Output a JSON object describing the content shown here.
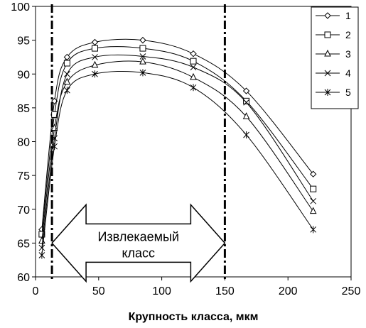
{
  "chart_data": {
    "type": "line",
    "xlabel": "Крупность класса, мкм",
    "ylabel": "",
    "xlim": [
      0,
      250
    ],
    "ylim": [
      60,
      100
    ],
    "xticks": [
      "0",
      "50",
      "100",
      "150",
      "200",
      "250"
    ],
    "yticks": [
      "60",
      "65",
      "70",
      "75",
      "80",
      "85",
      "90",
      "95",
      "100"
    ],
    "grid": false,
    "legend_position": "top-right",
    "x": [
      5,
      15,
      25,
      47,
      85,
      125,
      167,
      220
    ],
    "series": [
      {
        "name": "1",
        "marker": "diamond",
        "values": [
          67.0,
          86.0,
          92.5,
          94.7,
          95.0,
          93.0,
          87.5,
          75.2
        ]
      },
      {
        "name": "2",
        "marker": "square",
        "values": [
          66.3,
          84.0,
          91.6,
          93.8,
          93.8,
          91.9,
          86.0,
          73.0
        ]
      },
      {
        "name": "3",
        "marker": "triangle",
        "values": [
          65.3,
          82.0,
          88.8,
          91.3,
          91.8,
          89.5,
          83.7,
          69.7
        ]
      },
      {
        "name": "4",
        "marker": "x",
        "values": [
          64.3,
          80.5,
          90.0,
          92.5,
          92.6,
          91.0,
          85.8,
          71.2
        ]
      },
      {
        "name": "5",
        "marker": "star",
        "values": [
          63.2,
          79.3,
          87.6,
          90.0,
          90.2,
          88.0,
          81.0,
          67.0
        ]
      }
    ],
    "vlines": [
      13,
      150
    ],
    "annotation": {
      "line1": "Извлекаемый",
      "line2": "класс",
      "x_from": 13,
      "x_to": 150,
      "y_center": 65
    }
  }
}
